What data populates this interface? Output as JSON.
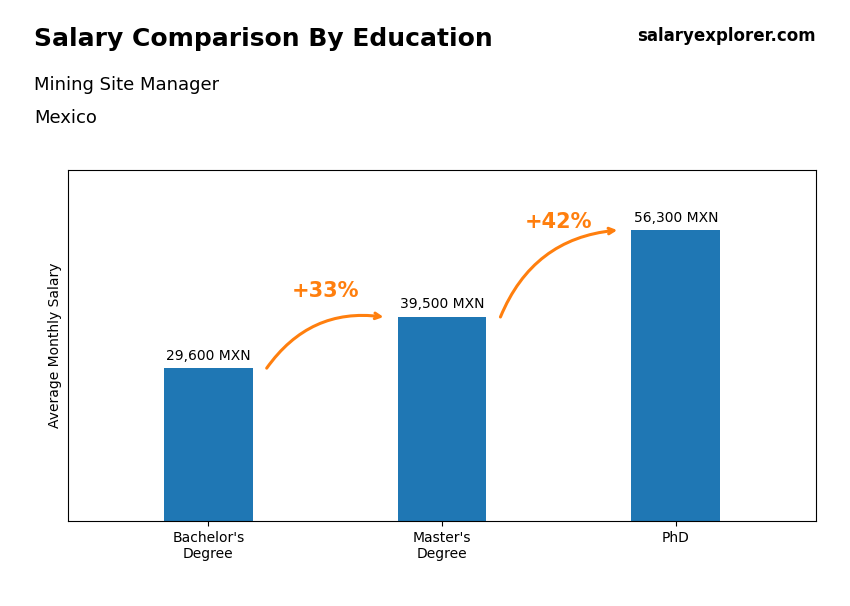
{
  "chart_data": {
    "type": "bar",
    "title": "Salary Comparison By Education",
    "subtitle": [
      "Mining Site Manager",
      "Mexico"
    ],
    "ylabel": "Average Monthly Salary",
    "categories": [
      "Bachelor's\nDegree",
      "Master's\nDegree",
      "PhD"
    ],
    "values": [
      29600,
      39500,
      56300
    ],
    "value_labels": [
      "29,600 MXN",
      "39,500 MXN",
      "56,300 MXN"
    ],
    "data_labels": true,
    "ylim": [
      0,
      68000
    ],
    "tick_labels": "x",
    "grid": false,
    "annotations": [
      {
        "text": "+33%",
        "from": "Bachelor's\nDegree",
        "to": "Master's\nDegree"
      },
      {
        "text": "+42%",
        "from": "Master's\nDegree",
        "to": "PhD"
      },
      {
        "text": "salaryexplorer.com"
      }
    ]
  }
}
